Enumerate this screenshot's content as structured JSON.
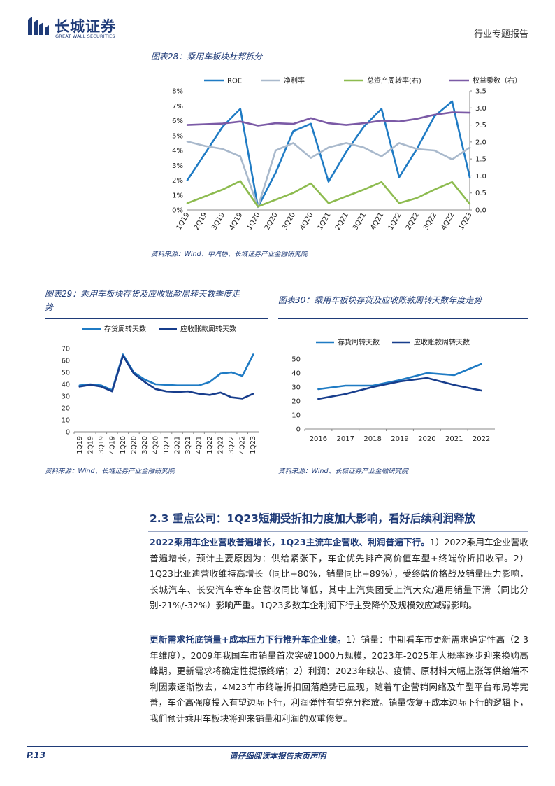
{
  "header": {
    "logo_cn": "长城证券",
    "logo_en": "GREAT WALL SECURITIES",
    "doc_type": "行业专题报告"
  },
  "fig28": {
    "title": "图表28：乘用车板块杜邦拆分",
    "source": "资料来源：Wind、中汽协、长城证券产业金融研究院"
  },
  "fig29": {
    "title_line1": "图表29：乘用车板块存货及应收账款周转天数季度走",
    "title_line2": "势",
    "source": "资料来源：Wind、长城证券产业金融研究院"
  },
  "fig30": {
    "title": "图表30：乘用车板块存货及应收账款周转天数年度走势",
    "source": "资料来源：Wind、长城证券产业金融研究院"
  },
  "section": {
    "heading": "2.3  重点公司：1Q23短期受折扣力度加大影响，看好后续利润释放",
    "p1_lead": "2022乘用车企业营收普遍增长，1Q23主流车企营收、利润普遍下行。",
    "p1_body": "1）2022乘用车企业营收普遍增长，预计主要原因为：供给紧张下，车企优先排产高价值车型+终端价折扣收窄。2）1Q23比亚迪营收维持高增长（同比+80%，销量同比+89%），受终端价格战及销量压力影响，长城汽车、长安汽车等车企营收同比降低，其中上汽集团受上汽大众/通用销量下滑（同比分别-21%/-32%）影响严重。1Q23多数车企利润下行主受降价及规模效应减弱影响。",
    "p2_lead": "更新需求托底销量+成本压力下行推升车企业绩。",
    "p2_body": "1）销量：中期看车市更新需求确定性高（2-3年维度），2009年我国车市销量首次突破1000万规模，2023年-2025年大概率逐步迎来换购高峰期，更新需求将确定性提振终端；2）利润：2023年缺芯、疫情、原材料大幅上涨等供给端不利因素逐渐散去，4M23车市终端折扣回落趋势已显现，随着车企营销网络及车型平台布局等完善，车企高强度投入有望边际下行，利润弹性有望充分释放。销量恢复+成本边际下行的逻辑下，我们预计乘用车板块将迎来销量和利润的双重修复。"
  },
  "footer": {
    "page": "P.13",
    "disclaimer": "请仔细阅读本报告末页声明"
  },
  "chart_data": [
    {
      "id": "dupont",
      "type": "line",
      "title": "乘用车板块杜邦拆分",
      "categories": [
        "1Q19",
        "2Q19",
        "3Q19",
        "4Q19",
        "1Q20",
        "2Q20",
        "3Q20",
        "4Q20",
        "1Q21",
        "2Q21",
        "3Q21",
        "4Q21",
        "1Q22",
        "2Q22",
        "3Q22",
        "4Q22",
        "1Q23"
      ],
      "left_axis": {
        "ticks": [
          "0%",
          "1%",
          "2%",
          "3%",
          "4%",
          "5%",
          "6%",
          "7%",
          "8%"
        ],
        "min": 0,
        "max": 8
      },
      "right_axis": {
        "ticks": [
          "0.0",
          "0.5",
          "1.0",
          "1.5",
          "2.0",
          "2.5",
          "3.0",
          "3.5"
        ],
        "min": 0,
        "max": 3.5
      },
      "series": [
        {
          "name": "ROE",
          "axis": "left",
          "color": "#1f7bc4",
          "values": [
            2.0,
            3.8,
            5.6,
            6.8,
            0.2,
            2.5,
            5.3,
            5.8,
            1.9,
            3.9,
            5.6,
            6.8,
            2.2,
            4.1,
            6.3,
            7.3,
            2.2
          ]
        },
        {
          "name": "净利率",
          "axis": "left",
          "color": "#a9b9cc",
          "values": [
            4.6,
            4.3,
            4.1,
            3.6,
            0.2,
            4.0,
            4.5,
            3.5,
            4.2,
            4.5,
            4.2,
            3.6,
            4.5,
            4.1,
            4.0,
            3.4,
            4.2
          ]
        },
        {
          "name": "总资产周转率(右)",
          "axis": "right",
          "color": "#8dbb4f",
          "values": [
            0.2,
            0.4,
            0.6,
            0.85,
            0.1,
            0.3,
            0.5,
            0.78,
            0.2,
            0.4,
            0.6,
            0.82,
            0.2,
            0.35,
            0.6,
            0.82,
            0.18
          ]
        },
        {
          "name": "权益乘数（右）",
          "axis": "right",
          "color": "#7b5aa6",
          "values": [
            2.5,
            2.52,
            2.54,
            2.6,
            2.48,
            2.55,
            2.53,
            2.7,
            2.55,
            2.5,
            2.55,
            2.63,
            2.6,
            2.68,
            2.8,
            2.87,
            2.86
          ]
        }
      ]
    },
    {
      "id": "turnover-quarterly",
      "type": "line",
      "title": "乘用车板块存货及应收账款周转天数季度走势",
      "categories": [
        "1Q19",
        "2Q19",
        "3Q19",
        "4Q19",
        "1Q20",
        "2Q20",
        "3Q20",
        "4Q20",
        "1Q21",
        "2Q21",
        "3Q21",
        "4Q21",
        "1Q22",
        "2Q22",
        "3Q22",
        "4Q22",
        "1Q23"
      ],
      "y_axis": {
        "ticks": [
          "0",
          "10",
          "20",
          "30",
          "40",
          "50",
          "60",
          "70"
        ],
        "min": 0,
        "max": 70
      },
      "series": [
        {
          "name": "存货周转天数",
          "color": "#1f7bc4",
          "values": [
            39,
            40,
            39,
            35,
            65,
            50,
            44,
            40,
            39.5,
            39,
            39,
            39,
            42,
            49,
            50,
            47,
            65
          ]
        },
        {
          "name": "应收账款周转天数",
          "color": "#173d8c",
          "values": [
            38,
            39.5,
            38,
            34,
            64,
            49,
            42,
            36,
            34,
            33.5,
            34,
            32,
            31,
            33,
            29,
            28,
            32
          ]
        }
      ]
    },
    {
      "id": "turnover-annual",
      "type": "line",
      "title": "乘用车板块存货及应收账款周转天数年度走势",
      "categories": [
        "2016",
        "2017",
        "2018",
        "2019",
        "2020",
        "2021",
        "2022"
      ],
      "y_axis": {
        "ticks": [
          "0",
          "10",
          "20",
          "30",
          "40",
          "50"
        ],
        "min": 0,
        "max": 50
      },
      "series": [
        {
          "name": "存货周转天数",
          "color": "#1f7bc4",
          "values": [
            28.5,
            31,
            31,
            35,
            40,
            38.5,
            46.5
          ]
        },
        {
          "name": "应收账款周转天数",
          "color": "#173d8c",
          "values": [
            21.5,
            25,
            30,
            34,
            36.5,
            31.5,
            27.5
          ]
        }
      ]
    }
  ]
}
